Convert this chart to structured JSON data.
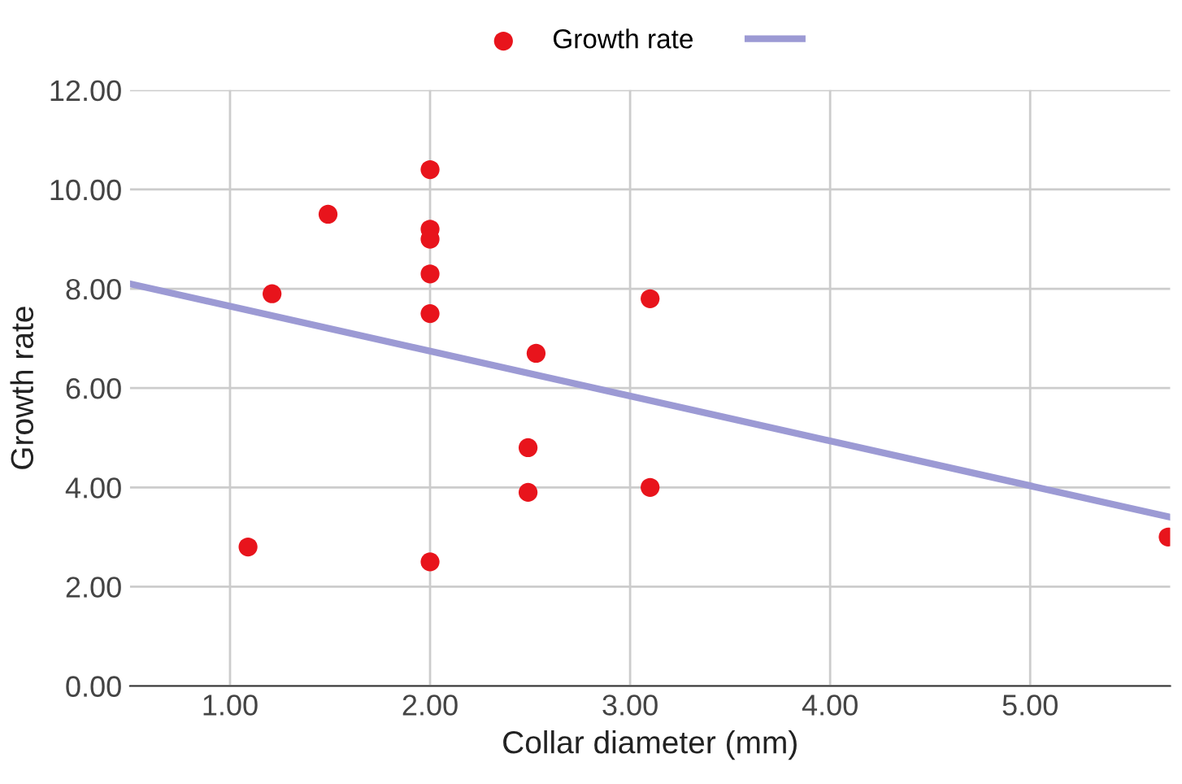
{
  "chart_data": {
    "type": "scatter",
    "xlabel": "Collar diameter (mm)",
    "ylabel": "Growth rate",
    "xlim": [
      0.5,
      5.7
    ],
    "ylim": [
      0,
      12
    ],
    "xticks": [
      {
        "value": 1,
        "label": "1.00"
      },
      {
        "value": 2,
        "label": "2.00"
      },
      {
        "value": 3,
        "label": "3.00"
      },
      {
        "value": 4,
        "label": "4.00"
      },
      {
        "value": 5,
        "label": "5.00"
      }
    ],
    "yticks": [
      {
        "value": 0,
        "label": "0.00"
      },
      {
        "value": 2,
        "label": "2.00"
      },
      {
        "value": 4,
        "label": "4.00"
      },
      {
        "value": 6,
        "label": "6.00"
      },
      {
        "value": 8,
        "label": "8.00"
      },
      {
        "value": 10,
        "label": "10.00"
      },
      {
        "value": 12,
        "label": "12.00"
      }
    ],
    "grid": true,
    "legend": "top",
    "marker": "circle",
    "series": [
      {
        "name": "Growth rate",
        "color": "#e8141c",
        "x": [
          1.09,
          1.21,
          1.49,
          2.0,
          2.0,
          2.0,
          2.0,
          2.0,
          2.0,
          2.53,
          2.49,
          2.49,
          3.1,
          3.1,
          5.69
        ],
        "values": [
          2.8,
          7.9,
          9.5,
          10.4,
          9.2,
          9.0,
          8.3,
          7.5,
          2.5,
          6.7,
          4.8,
          3.9,
          7.8,
          4.0,
          3.0
        ]
      },
      {
        "type": "line",
        "color": "#9c9ad4",
        "marker": "none",
        "x": [
          0.5,
          5.7
        ],
        "values": [
          8.1,
          3.4
        ]
      }
    ]
  }
}
